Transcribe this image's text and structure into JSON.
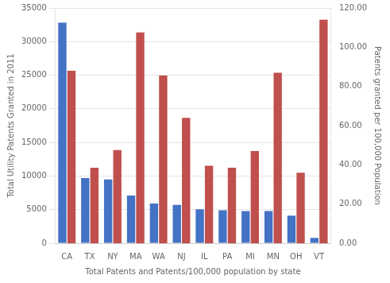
{
  "chart_data": {
    "type": "bar",
    "categories": [
      "CA",
      "TX",
      "NY",
      "MA",
      "WA",
      "NJ",
      "IL",
      "PA",
      "MI",
      "MN",
      "OH",
      "VT"
    ],
    "series": [
      {
        "color": "#4472C4",
        "values": [
          32800,
          9700,
          9500,
          7100,
          5900,
          5700,
          5050,
          4900,
          4800,
          4800,
          4100,
          800
        ]
      },
      {
        "color": "#C0504D",
        "axis": "y2",
        "values": [
          88.0,
          38.5,
          47.5,
          107.5,
          85.5,
          64.0,
          39.5,
          38.5,
          47.0,
          87.0,
          36.0,
          114.0
        ]
      }
    ],
    "xlabel": "Total Patents and Patents/100,000 population by state",
    "ylabel": "Total Utility Patents Granted in 2011",
    "y2label": "Patents granted per 100,000 Population",
    "ylim": [
      0,
      35000
    ],
    "yticks": [
      0,
      5000,
      10000,
      15000,
      20000,
      25000,
      30000,
      35000
    ],
    "y2lim": [
      0,
      120.0
    ],
    "y2ticks": [
      {
        "value": 0,
        "label": "0.00"
      },
      {
        "value": 20,
        "label": "20.00"
      },
      {
        "value": 40,
        "label": "40.00"
      },
      {
        "value": 60,
        "label": "60.00"
      },
      {
        "value": 80,
        "label": "80.00"
      },
      {
        "value": 100,
        "label": "100.00"
      },
      {
        "value": 120,
        "label": "120.00"
      }
    ],
    "grid": true
  }
}
